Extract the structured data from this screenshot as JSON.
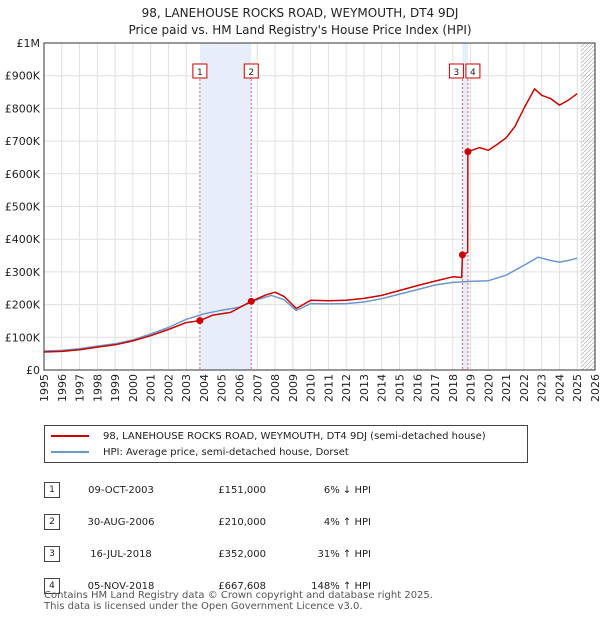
{
  "title_line1": "98, LANEHOUSE ROCKS ROAD, WEYMOUTH, DT4 9DJ",
  "title_line2": "Price paid vs. HM Land Registry's House Price Index (HPI)",
  "colors": {
    "property": "#cc0000",
    "hpi": "#6b98c9",
    "marker": "#cc0000",
    "shade": "#e8eef9",
    "vline": "#e06666",
    "grid": "#e0e0e0"
  },
  "chart_data": {
    "type": "line",
    "xlim": [
      1995,
      2026
    ],
    "ylim": [
      0,
      1000000
    ],
    "x_ticks": [
      1995,
      1996,
      1997,
      1998,
      1999,
      2000,
      2001,
      2002,
      2003,
      2004,
      2005,
      2006,
      2007,
      2008,
      2009,
      2010,
      2011,
      2012,
      2013,
      2014,
      2015,
      2016,
      2017,
      2018,
      2019,
      2020,
      2021,
      2022,
      2023,
      2024,
      2025,
      2026
    ],
    "y_ticks": [
      {
        "value": 0,
        "label": "£0"
      },
      {
        "value": 100000,
        "label": "£100K"
      },
      {
        "value": 200000,
        "label": "£200K"
      },
      {
        "value": 300000,
        "label": "£300K"
      },
      {
        "value": 400000,
        "label": "£400K"
      },
      {
        "value": 500000,
        "label": "£500K"
      },
      {
        "value": 600000,
        "label": "£600K"
      },
      {
        "value": 700000,
        "label": "£700K"
      },
      {
        "value": 800000,
        "label": "£800K"
      },
      {
        "value": 900000,
        "label": "£900K"
      },
      {
        "value": 1000000,
        "label": "£1M"
      }
    ],
    "shaded_ranges": [
      [
        2003.77,
        2006.66
      ],
      [
        2018.54,
        2018.85
      ]
    ],
    "future_hatch_from": 2025.2,
    "series": [
      {
        "name": "98, LANEHOUSE ROCKS ROAD, WEYMOUTH, DT4 9DJ (semi-detached house)",
        "x": [
          1995.0,
          1996.0,
          1997.0,
          1998.0,
          1999.0,
          2000.0,
          2001.0,
          2002.0,
          2003.0,
          2003.77,
          2004.5,
          2005.5,
          2006.66,
          2007.5,
          2008.0,
          2008.5,
          2009.2,
          2010.0,
          2011.0,
          2012.0,
          2013.0,
          2014.0,
          2015.0,
          2016.0,
          2017.0,
          2018.0,
          2018.5,
          2018.54,
          2018.84,
          2018.85,
          2019.5,
          2020.0,
          2020.5,
          2021.0,
          2021.5,
          2022.0,
          2022.6,
          2023.0,
          2023.5,
          2024.0,
          2024.5,
          2025.0
        ],
        "y": [
          55000,
          57000,
          62000,
          70000,
          77000,
          89000,
          105000,
          124000,
          145000,
          151000,
          168000,
          176000,
          210000,
          230000,
          238000,
          225000,
          188000,
          213000,
          212000,
          213000,
          219000,
          228000,
          243000,
          258000,
          272000,
          285000,
          283000,
          352000,
          360000,
          667608,
          680000,
          672000,
          690000,
          710000,
          745000,
          800000,
          860000,
          840000,
          830000,
          810000,
          825000,
          845000
        ]
      },
      {
        "name": "HPI: Average price, semi-detached house, Dorset",
        "x": [
          1995.0,
          1996.0,
          1997.0,
          1998.0,
          1999.0,
          2000.0,
          2001.0,
          2002.0,
          2003.0,
          2004.0,
          2005.0,
          2006.0,
          2007.0,
          2007.8,
          2008.5,
          2009.2,
          2010.0,
          2011.0,
          2012.0,
          2013.0,
          2014.0,
          2015.0,
          2016.0,
          2017.0,
          2018.0,
          2019.0,
          2020.0,
          2021.0,
          2022.0,
          2022.8,
          2023.5,
          2024.0,
          2024.5,
          2025.0
        ],
        "y": [
          58000,
          60000,
          65000,
          73000,
          80000,
          92000,
          110000,
          130000,
          155000,
          172000,
          183000,
          192000,
          215000,
          228000,
          215000,
          182000,
          203000,
          202000,
          203000,
          208000,
          218000,
          232000,
          246000,
          260000,
          268000,
          271000,
          273000,
          290000,
          320000,
          345000,
          335000,
          330000,
          335000,
          342000
        ]
      }
    ],
    "sales": [
      {
        "num": "1",
        "x": 2003.77,
        "y": 151000
      },
      {
        "num": "2",
        "x": 2006.66,
        "y": 210000
      },
      {
        "num": "3",
        "x": 2018.54,
        "y": 352000
      },
      {
        "num": "4",
        "x": 2018.85,
        "y": 667608
      }
    ]
  },
  "legend": {
    "property": "98, LANEHOUSE ROCKS ROAD, WEYMOUTH, DT4 9DJ (semi-detached house)",
    "hpi": "HPI: Average price, semi-detached house, Dorset"
  },
  "sales_table": [
    {
      "num": "1",
      "date": "09-OCT-2003",
      "price": "£151,000",
      "hpi": "6% ↓ HPI"
    },
    {
      "num": "2",
      "date": "30-AUG-2006",
      "price": "£210,000",
      "hpi": "4% ↑ HPI"
    },
    {
      "num": "3",
      "date": "16-JUL-2018",
      "price": "£352,000",
      "hpi": "31% ↑ HPI"
    },
    {
      "num": "4",
      "date": "05-NOV-2018",
      "price": "£667,608",
      "hpi": "148% ↑ HPI"
    }
  ],
  "footer_line1": "Contains HM Land Registry data © Crown copyright and database right 2025.",
  "footer_line2": "This data is licensed under the Open Government Licence v3.0."
}
